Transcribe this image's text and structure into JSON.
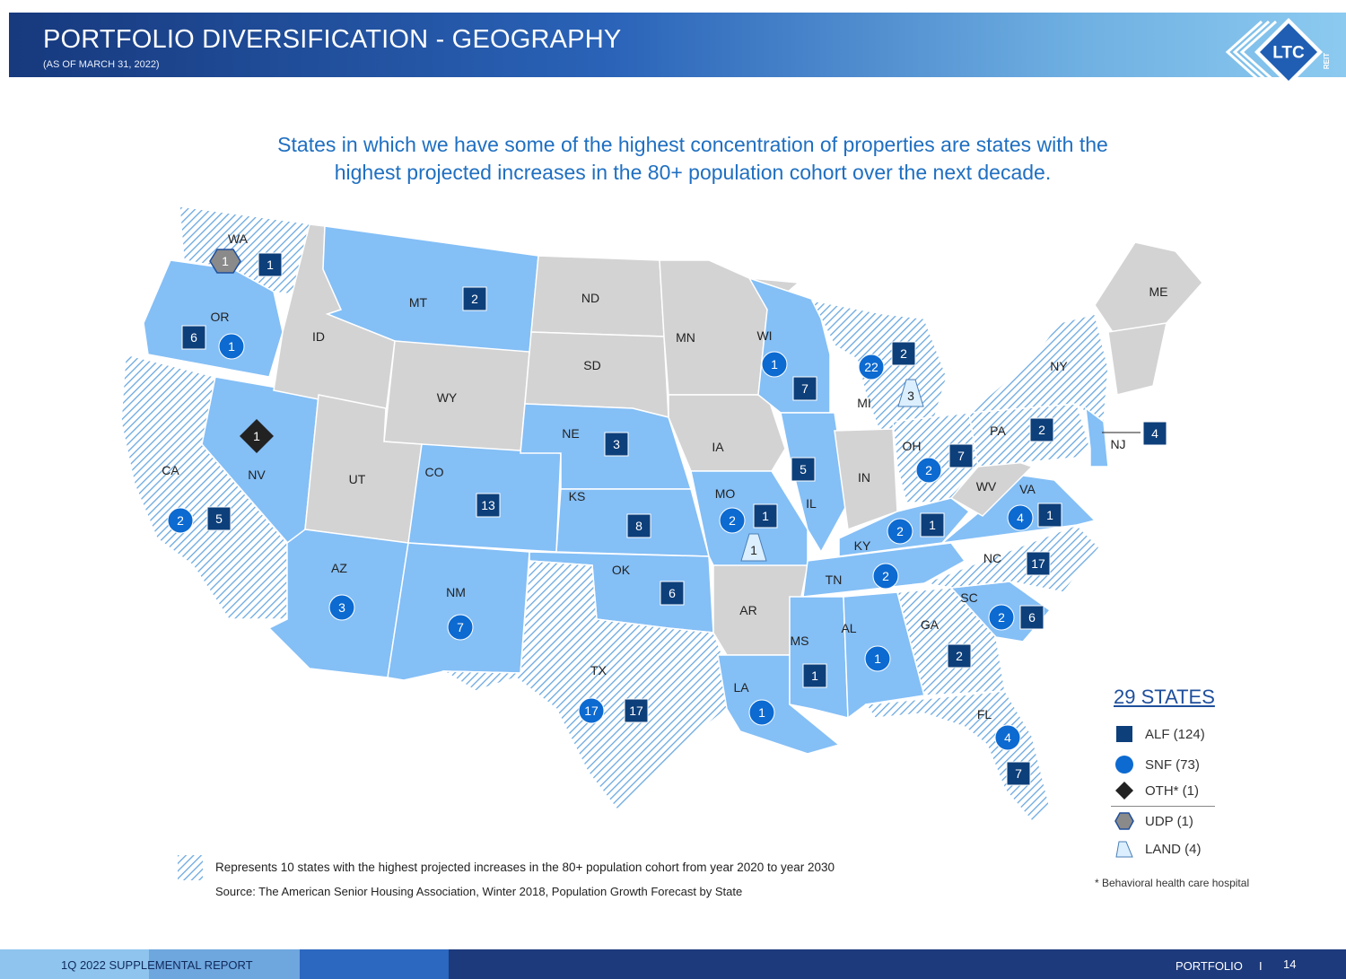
{
  "header": {
    "title": "PORTFOLIO DIVERSIFICATION - GEOGRAPHY",
    "subtitle": "(AS OF MARCH 31, 2022)",
    "logo_text": "LTC",
    "logo_subtext": "REIT"
  },
  "headline": "States in which we have some of the highest concentration of properties are states with the highest projected increases in the 80+ population cohort over the next decade.",
  "colors": {
    "header_dark": "#17397d",
    "header_light": "#8ccaf0",
    "portfolio_state": "#84bff6",
    "non_portfolio_state": "#d3d3d3",
    "hatch": "#6aa8e0",
    "alf_marker": "#0d3f7a",
    "snf_marker": "#0c6ad1",
    "oth_marker": "#222222",
    "udp_marker": "#8a8a8a",
    "land_marker": "#dcefff",
    "legend_title": "#1f4f9c"
  },
  "states": [
    {
      "abbr": "WA",
      "category": "hatched"
    },
    {
      "abbr": "OR",
      "category": "portfolio"
    },
    {
      "abbr": "CA",
      "category": "hatched"
    },
    {
      "abbr": "NV",
      "category": "portfolio"
    },
    {
      "abbr": "ID",
      "category": "none"
    },
    {
      "abbr": "MT",
      "category": "portfolio"
    },
    {
      "abbr": "WY",
      "category": "none"
    },
    {
      "abbr": "UT",
      "category": "none"
    },
    {
      "abbr": "CO",
      "category": "portfolio"
    },
    {
      "abbr": "AZ",
      "category": "portfolio"
    },
    {
      "abbr": "NM",
      "category": "portfolio"
    },
    {
      "abbr": "ND",
      "category": "none"
    },
    {
      "abbr": "SD",
      "category": "none"
    },
    {
      "abbr": "NE",
      "category": "portfolio"
    },
    {
      "abbr": "KS",
      "category": "portfolio"
    },
    {
      "abbr": "OK",
      "category": "portfolio"
    },
    {
      "abbr": "TX",
      "category": "hatched"
    },
    {
      "abbr": "MN",
      "category": "none"
    },
    {
      "abbr": "IA",
      "category": "none"
    },
    {
      "abbr": "MO",
      "category": "portfolio"
    },
    {
      "abbr": "AR",
      "category": "none"
    },
    {
      "abbr": "LA",
      "category": "portfolio"
    },
    {
      "abbr": "WI",
      "category": "portfolio"
    },
    {
      "abbr": "IL",
      "category": "portfolio"
    },
    {
      "abbr": "MI",
      "category": "hatched"
    },
    {
      "abbr": "IN",
      "category": "none"
    },
    {
      "abbr": "OH",
      "category": "hatched"
    },
    {
      "abbr": "KY",
      "category": "portfolio"
    },
    {
      "abbr": "TN",
      "category": "portfolio"
    },
    {
      "abbr": "MS",
      "category": "portfolio"
    },
    {
      "abbr": "AL",
      "category": "portfolio"
    },
    {
      "abbr": "GA",
      "category": "hatched"
    },
    {
      "abbr": "FL",
      "category": "hatched"
    },
    {
      "abbr": "SC",
      "category": "portfolio"
    },
    {
      "abbr": "NC",
      "category": "hatched"
    },
    {
      "abbr": "VA",
      "category": "portfolio"
    },
    {
      "abbr": "WV",
      "category": "none"
    },
    {
      "abbr": "PA",
      "category": "hatched"
    },
    {
      "abbr": "NY",
      "category": "hatched"
    },
    {
      "abbr": "NJ",
      "category": "portfolio"
    },
    {
      "abbr": "ME",
      "category": "none"
    }
  ],
  "markers": [
    {
      "state": "WA",
      "type": "UDP",
      "count": "1"
    },
    {
      "state": "WA",
      "type": "ALF",
      "count": "1"
    },
    {
      "state": "OR",
      "type": "ALF",
      "count": "6"
    },
    {
      "state": "OR",
      "type": "SNF",
      "count": "1"
    },
    {
      "state": "MT",
      "type": "ALF",
      "count": "2"
    },
    {
      "state": "NV",
      "type": "OTH",
      "count": "1"
    },
    {
      "state": "CA",
      "type": "SNF",
      "count": "2"
    },
    {
      "state": "CA",
      "type": "ALF",
      "count": "5"
    },
    {
      "state": "CO",
      "type": "ALF",
      "count": "13"
    },
    {
      "state": "AZ",
      "type": "SNF",
      "count": "3"
    },
    {
      "state": "NM",
      "type": "SNF",
      "count": "7"
    },
    {
      "state": "NE",
      "type": "ALF",
      "count": "3"
    },
    {
      "state": "KS",
      "type": "ALF",
      "count": "8"
    },
    {
      "state": "OK",
      "type": "ALF",
      "count": "6"
    },
    {
      "state": "TX",
      "type": "SNF",
      "count": "17"
    },
    {
      "state": "TX",
      "type": "ALF",
      "count": "17"
    },
    {
      "state": "WI",
      "type": "SNF",
      "count": "1"
    },
    {
      "state": "WI",
      "type": "ALF",
      "count": "7"
    },
    {
      "state": "IL",
      "type": "ALF",
      "count": "5"
    },
    {
      "state": "MO",
      "type": "SNF",
      "count": "2"
    },
    {
      "state": "MO",
      "type": "ALF",
      "count": "1"
    },
    {
      "state": "MO",
      "type": "LAND",
      "count": "1"
    },
    {
      "state": "MI",
      "type": "SNF",
      "count": "22"
    },
    {
      "state": "MI",
      "type": "ALF",
      "count": "2"
    },
    {
      "state": "MI",
      "type": "LAND",
      "count": "3"
    },
    {
      "state": "OH",
      "type": "SNF",
      "count": "2"
    },
    {
      "state": "OH",
      "type": "ALF",
      "count": "7"
    },
    {
      "state": "KY",
      "type": "SNF",
      "count": "2"
    },
    {
      "state": "KY",
      "type": "ALF",
      "count": "1"
    },
    {
      "state": "TN",
      "type": "SNF",
      "count": "2"
    },
    {
      "state": "MS",
      "type": "ALF",
      "count": "1"
    },
    {
      "state": "LA",
      "type": "SNF",
      "count": "1"
    },
    {
      "state": "AL",
      "type": "SNF",
      "count": "1"
    },
    {
      "state": "GA",
      "type": "ALF",
      "count": "2"
    },
    {
      "state": "FL",
      "type": "SNF",
      "count": "4"
    },
    {
      "state": "FL",
      "type": "ALF",
      "count": "7"
    },
    {
      "state": "SC",
      "type": "SNF",
      "count": "2"
    },
    {
      "state": "SC",
      "type": "ALF",
      "count": "6"
    },
    {
      "state": "NC",
      "type": "ALF",
      "count": "17"
    },
    {
      "state": "VA",
      "type": "SNF",
      "count": "4"
    },
    {
      "state": "VA",
      "type": "ALF",
      "count": "1"
    },
    {
      "state": "PA",
      "type": "ALF",
      "count": "2"
    },
    {
      "state": "NJ",
      "type": "ALF",
      "count": "4"
    }
  ],
  "legend": {
    "title": "29 STATES",
    "items": [
      {
        "icon": "square",
        "label": "ALF (124)"
      },
      {
        "icon": "circle",
        "label": "SNF (73)"
      },
      {
        "icon": "diamond",
        "label": "OTH* (1)"
      },
      {
        "icon": "hexagon",
        "label": "UDP (1)"
      },
      {
        "icon": "trapezoid",
        "label": "LAND (4)"
      }
    ],
    "footnote": "* Behavioral health care hospital"
  },
  "notes": {
    "hatch_note": "Represents 10 states with the highest projected increases in the 80+ population cohort from year 2020 to year 2030",
    "source": "Source:  The American Senior Housing Association, Winter 2018, Population Growth Forecast by State"
  },
  "footer": {
    "left": "1Q 2022 SUPPLEMENTAL REPORT",
    "section": "PORTFOLIO",
    "separator": "I",
    "page": "14"
  }
}
